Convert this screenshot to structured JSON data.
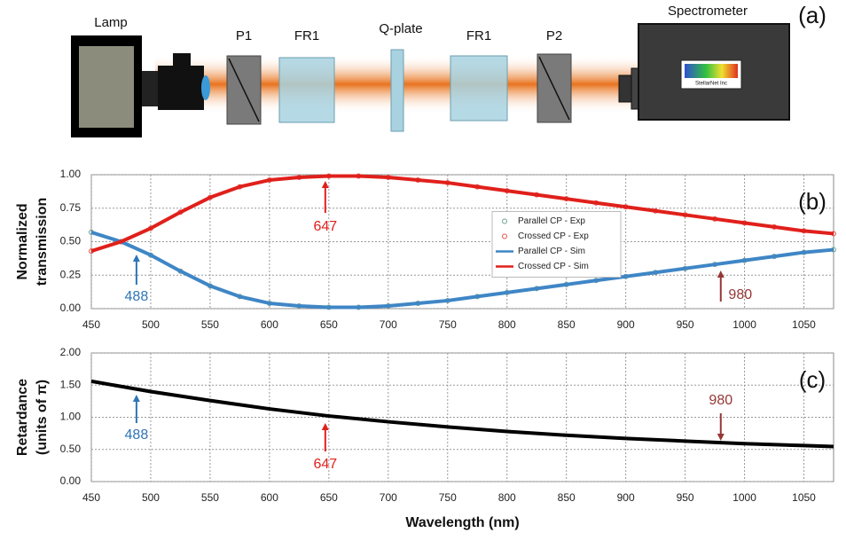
{
  "diagram": {
    "labels": [
      "Lamp",
      "P1",
      "FR1",
      "Q-plate",
      "FR1",
      "P2",
      "Spectrometer"
    ],
    "panel": "(a)",
    "logo": "StellarNet Inc"
  },
  "chart_data": [
    {
      "type": "line",
      "panel": "(b)",
      "ylabel": [
        "Normalized",
        "transmission"
      ],
      "x": [
        450,
        475,
        500,
        525,
        550,
        575,
        600,
        625,
        650,
        675,
        700,
        725,
        750,
        775,
        800,
        825,
        850,
        875,
        900,
        925,
        950,
        975,
        1000,
        1025,
        1050,
        1075
      ],
      "series": [
        {
          "name": "Parallel CP - Exp",
          "style": "markers",
          "color": "#6a9f8f",
          "values": [
            0.57,
            0.5,
            0.4,
            0.28,
            0.17,
            0.09,
            0.04,
            0.02,
            0.01,
            0.01,
            0.02,
            0.04,
            0.06,
            0.09,
            0.12,
            0.15,
            0.18,
            0.21,
            0.24,
            0.27,
            0.3,
            0.33,
            0.36,
            0.39,
            0.42,
            0.44
          ]
        },
        {
          "name": "Crossed CP - Exp",
          "style": "markers",
          "color": "#e8504a",
          "values": [
            0.43,
            0.5,
            0.6,
            0.72,
            0.83,
            0.91,
            0.96,
            0.98,
            0.99,
            0.99,
            0.98,
            0.96,
            0.94,
            0.91,
            0.88,
            0.85,
            0.82,
            0.79,
            0.76,
            0.73,
            0.7,
            0.67,
            0.64,
            0.61,
            0.58,
            0.56
          ]
        },
        {
          "name": "Parallel CP - Sim",
          "style": "lines",
          "color": "#3f86c6",
          "values": [
            0.57,
            0.5,
            0.4,
            0.28,
            0.17,
            0.09,
            0.04,
            0.02,
            0.01,
            0.01,
            0.02,
            0.04,
            0.06,
            0.09,
            0.12,
            0.15,
            0.18,
            0.21,
            0.24,
            0.27,
            0.3,
            0.33,
            0.36,
            0.39,
            0.42,
            0.44
          ]
        },
        {
          "name": "Crossed CP - Sim",
          "style": "lines",
          "color": "#e0201b",
          "values": [
            0.43,
            0.5,
            0.6,
            0.72,
            0.83,
            0.91,
            0.96,
            0.98,
            0.99,
            0.99,
            0.98,
            0.96,
            0.94,
            0.91,
            0.88,
            0.85,
            0.82,
            0.79,
            0.76,
            0.73,
            0.7,
            0.67,
            0.64,
            0.61,
            0.58,
            0.56
          ]
        }
      ],
      "xlim": [
        450,
        1075
      ],
      "ylim": [
        0,
        1
      ],
      "xticks": [
        450,
        500,
        550,
        600,
        650,
        700,
        750,
        800,
        850,
        900,
        950,
        1000,
        1050
      ],
      "yticks": [
        {
          "value": 0,
          "label": "0.00"
        },
        {
          "value": 0.25,
          "label": "0.25"
        },
        {
          "value": 0.5,
          "label": "0.50"
        },
        {
          "value": 0.75,
          "label": "0.75"
        },
        {
          "value": 1,
          "label": "1.00"
        }
      ],
      "grid": true,
      "legend": "center",
      "annotations": [
        {
          "x": 488,
          "color": "#2e75b6",
          "direction": "up"
        },
        {
          "x": 647,
          "color": "#e0201b",
          "direction": "up"
        },
        {
          "x": 980,
          "color": "#953735",
          "direction": "up"
        }
      ]
    },
    {
      "type": "line",
      "panel": "(c)",
      "ylabel": [
        "Retardance",
        "(units of π)"
      ],
      "xlabel": "Wavelength (nm)",
      "x": [
        450,
        500,
        550,
        600,
        650,
        700,
        750,
        800,
        850,
        900,
        950,
        1000,
        1050,
        1075
      ],
      "series": [
        {
          "style": "lines",
          "color": "#000000",
          "values": [
            1.56,
            1.4,
            1.26,
            1.13,
            1.02,
            0.93,
            0.85,
            0.78,
            0.72,
            0.67,
            0.63,
            0.59,
            0.56,
            0.545
          ]
        }
      ],
      "xlim": [
        450,
        1075
      ],
      "ylim": [
        0,
        2
      ],
      "xticks": [
        450,
        500,
        550,
        600,
        650,
        700,
        750,
        800,
        850,
        900,
        950,
        1000,
        1050
      ],
      "yticks": [
        {
          "value": 0,
          "label": "0.00"
        },
        {
          "value": 0.5,
          "label": "0.50"
        },
        {
          "value": 1,
          "label": "1.00"
        },
        {
          "value": 1.5,
          "label": "1.50"
        },
        {
          "value": 2,
          "label": "2.00"
        }
      ],
      "grid": true,
      "annotations": [
        {
          "x": 488,
          "color": "#2e75b6",
          "direction": "up"
        },
        {
          "x": 647,
          "color": "#e0201b",
          "direction": "up"
        },
        {
          "x": 980,
          "color": "#953735",
          "direction": "down"
        }
      ]
    }
  ]
}
